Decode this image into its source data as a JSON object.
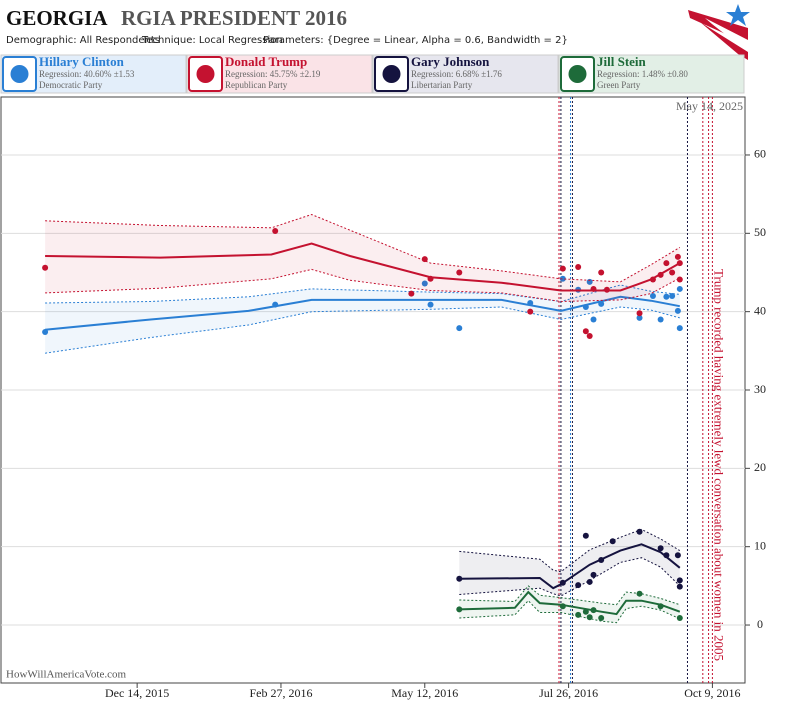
{
  "chart_data": {
    "type": "scatter",
    "title_state": "GEORGIA",
    "title": "RGIA PRESIDENT 2016",
    "subtitle": [
      "Demographic: All Respondents",
      "Technique: Local Regression",
      "Parameters: {Degree = Linear, Alpha = 0.6, Bandwidth = 2}"
    ],
    "date_stamp": "May 14, 2025",
    "source": "HowWillAmericaVote.com",
    "xlim": [
      "2015-10-04",
      "2016-10-26"
    ],
    "xticks": [
      {
        "value": "2015-12-14",
        "label": "Dec 14, 2015"
      },
      {
        "value": "2016-02-27",
        "label": "Feb 27, 2016"
      },
      {
        "value": "2016-05-12",
        "label": "May 12, 2016"
      },
      {
        "value": "2016-07-26",
        "label": "Jul 26, 2016"
      },
      {
        "value": "2016-10-09",
        "label": "Oct 9, 2016"
      }
    ],
    "ylim": [
      -7.4,
      67.4
    ],
    "yticks": [
      0,
      10,
      20,
      30,
      40,
      50,
      60
    ],
    "grid": true,
    "events": [
      {
        "x": "2016-07-21",
        "color": "#c41230"
      },
      {
        "x": "2016-07-22",
        "color": "#15133f"
      },
      {
        "x": "2016-07-27",
        "color": "#2a7fd4"
      },
      {
        "x": "2016-07-28",
        "color": "#15133f"
      },
      {
        "x": "2016-09-26",
        "color": "#15133f"
      },
      {
        "x": "2016-10-04",
        "color": "#c41230"
      },
      {
        "x": "2016-10-07",
        "color": "#c41230",
        "label": "Trump recorded having extremely lewd conversation about women in 2005"
      },
      {
        "x": "2016-10-09",
        "color": "#c41230"
      }
    ],
    "series": [
      {
        "name": "Hillary Clinton",
        "regression": "Regression: 40.60% ±1.53",
        "party": "Democratic Party",
        "color": "#2a7fd4",
        "bg": "#e3eefa",
        "x": [
          "2015-10-27",
          "2016-02-24",
          "2016-05-12",
          "2016-05-15",
          "2016-05-30",
          "2016-07-06",
          "2016-07-23",
          "2016-07-31",
          "2016-08-04",
          "2016-08-06",
          "2016-08-08",
          "2016-08-12",
          "2016-09-01",
          "2016-09-08",
          "2016-09-12",
          "2016-09-15",
          "2016-09-18",
          "2016-09-21",
          "2016-09-22",
          "2016-09-22"
        ],
        "values": [
          37.4,
          40.9,
          43.6,
          40.9,
          37.9,
          41.1,
          44.2,
          42.8,
          40.6,
          43.8,
          39.0,
          41.0,
          39.2,
          42.0,
          39.0,
          41.9,
          42.0,
          40.1,
          42.9,
          37.9
        ],
        "trend": {
          "x": [
            "2015-10-27",
            "2015-12-21",
            "2016-02-10",
            "2016-03-14",
            "2016-05-15",
            "2016-06-21",
            "2016-07-22",
            "2016-08-22",
            "2016-09-07",
            "2016-09-22"
          ],
          "values": [
            37.7,
            39.0,
            40.1,
            41.5,
            41.5,
            41.5,
            40.1,
            41.9,
            41.4,
            40.7
          ],
          "upper": [
            41.1,
            41.3,
            41.9,
            42.9,
            42.5,
            42.3,
            41.3,
            43.4,
            42.6,
            42.2
          ],
          "lower": [
            34.7,
            36.7,
            38.3,
            40.0,
            40.3,
            40.6,
            39.0,
            40.6,
            40.2,
            39.2
          ]
        }
      },
      {
        "name": "Donald Trump",
        "regression": "Regression: 45.75% ±2.19",
        "party": "Republican Party",
        "color": "#c41230",
        "bg": "#fae3e7",
        "x": [
          "2015-10-27",
          "2016-02-24",
          "2016-05-05",
          "2016-05-12",
          "2016-05-15",
          "2016-05-30",
          "2016-07-06",
          "2016-07-23",
          "2016-07-31",
          "2016-08-04",
          "2016-08-06",
          "2016-08-08",
          "2016-08-12",
          "2016-08-15",
          "2016-09-01",
          "2016-09-08",
          "2016-09-12",
          "2016-09-15",
          "2016-09-18",
          "2016-09-21",
          "2016-09-22",
          "2016-09-22"
        ],
        "values": [
          45.6,
          50.3,
          42.3,
          46.7,
          44.2,
          45.0,
          40.0,
          45.5,
          45.7,
          37.5,
          36.9,
          42.9,
          45.0,
          42.8,
          39.8,
          44.1,
          44.7,
          46.2,
          45.0,
          47.0,
          46.2,
          44.1
        ],
        "trend": {
          "x": [
            "2015-10-27",
            "2015-12-26",
            "2016-02-22",
            "2016-03-14",
            "2016-04-03",
            "2016-05-15",
            "2016-06-21",
            "2016-07-22",
            "2016-08-22",
            "2016-09-07",
            "2016-09-22"
          ],
          "values": [
            47.1,
            46.9,
            47.3,
            48.7,
            47.1,
            44.4,
            43.7,
            42.7,
            42.7,
            44.1,
            46.2
          ],
          "upper": [
            51.6,
            51.0,
            50.7,
            52.4,
            50.4,
            46.2,
            45.2,
            44.2,
            43.8,
            46.0,
            48.2
          ],
          "lower": [
            42.4,
            43.0,
            44.2,
            45.4,
            44.0,
            42.7,
            42.4,
            41.3,
            41.5,
            42.3,
            44.3
          ]
        }
      },
      {
        "name": "Gary Johnson",
        "regression": "Regression: 6.68% ±1.76",
        "party": "Libertarian Party",
        "color": "#15133f",
        "bg": "#e6e6ee",
        "x": [
          "2016-05-30",
          "2016-07-23",
          "2016-07-31",
          "2016-08-04",
          "2016-08-06",
          "2016-08-08",
          "2016-08-12",
          "2016-08-18",
          "2016-09-01",
          "2016-09-12",
          "2016-09-15",
          "2016-09-21",
          "2016-09-22",
          "2016-09-22"
        ],
        "values": [
          5.9,
          5.4,
          5.1,
          11.4,
          5.5,
          6.4,
          8.3,
          10.7,
          11.9,
          9.8,
          8.9,
          8.9,
          5.7,
          4.9
        ],
        "trend": {
          "x": [
            "2016-05-30",
            "2016-07-11",
            "2016-07-18",
            "2016-07-22",
            "2016-08-06",
            "2016-08-22",
            "2016-09-02",
            "2016-09-12",
            "2016-09-22"
          ],
          "values": [
            5.9,
            6.0,
            4.7,
            5.2,
            7.7,
            9.5,
            10.3,
            9.3,
            7.3
          ],
          "upper": [
            9.4,
            8.4,
            7.0,
            6.8,
            9.6,
            11.2,
            12.2,
            11.0,
            9.5
          ],
          "lower": [
            3.9,
            4.7,
            4.0,
            3.7,
            5.7,
            8.0,
            8.6,
            7.4,
            5.0
          ]
        }
      },
      {
        "name": "Jill Stein",
        "regression": "Regression: 1.48% ±0.80",
        "party": "Green Party",
        "color": "#1e6b3a",
        "bg": "#e2efe6",
        "x": [
          "2016-05-30",
          "2016-07-23",
          "2016-07-31",
          "2016-08-04",
          "2016-08-06",
          "2016-08-08",
          "2016-08-12",
          "2016-09-01",
          "2016-09-12",
          "2016-09-22"
        ],
        "values": [
          2.0,
          2.4,
          1.3,
          1.7,
          1.0,
          1.9,
          0.9,
          4.0,
          2.4,
          0.9
        ],
        "trend": {
          "x": [
            "2016-05-30",
            "2016-06-28",
            "2016-07-05",
            "2016-07-11",
            "2016-07-22",
            "2016-08-12",
            "2016-08-20",
            "2016-08-25",
            "2016-09-02",
            "2016-09-12",
            "2016-09-22"
          ],
          "values": [
            2.0,
            2.2,
            4.2,
            2.8,
            2.6,
            1.7,
            1.4,
            3.1,
            3.1,
            2.6,
            1.7
          ],
          "upper": [
            3.2,
            3.0,
            5.0,
            3.8,
            3.5,
            2.8,
            2.6,
            4.2,
            4.0,
            3.4,
            2.6
          ],
          "lower": [
            0.9,
            1.3,
            3.1,
            1.6,
            1.6,
            0.5,
            0.3,
            2.1,
            2.4,
            1.9,
            0.8
          ]
        }
      }
    ]
  }
}
